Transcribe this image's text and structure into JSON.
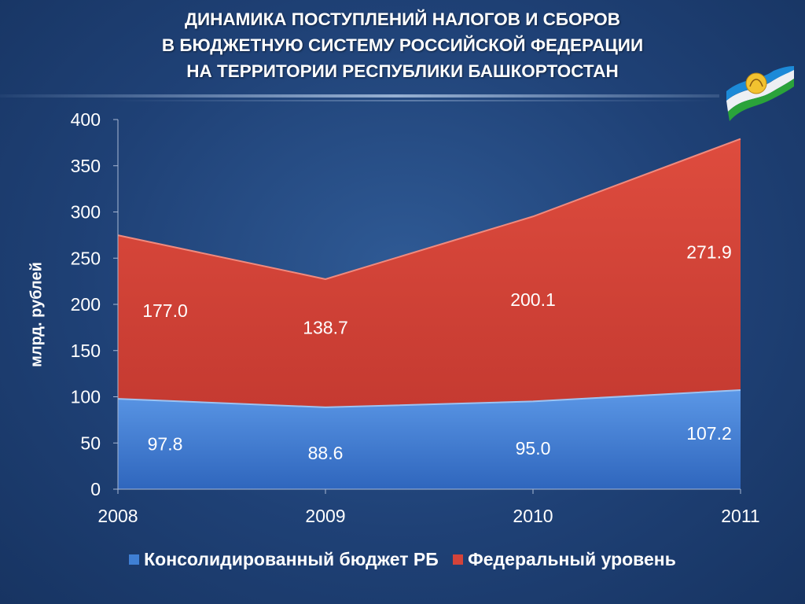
{
  "title_lines": [
    "ДИНАМИКА ПОСТУПЛЕНИЙ НАЛОГОВ И СБОРОВ",
    "В БЮДЖЕТНУЮ СИСТЕМУ РОССИЙСКОЙ ФЕДЕРАЦИИ",
    "НА ТЕРРИТОРИИ РЕСПУБЛИКИ БАШКОРТОСТАН"
  ],
  "chart_data": {
    "type": "area",
    "stacked": true,
    "x": [
      "2008",
      "2009",
      "2010",
      "2011"
    ],
    "ylabel": "млрд. рублей",
    "ylim": [
      0,
      400
    ],
    "yticks": [
      "0",
      "50",
      "100",
      "150",
      "200",
      "250",
      "300",
      "350",
      "400"
    ],
    "series": [
      {
        "name": "Консолидированный бюджет РБ",
        "values": [
          97.8,
          88.6,
          95.0,
          107.2
        ],
        "labels": [
          "97.8",
          "88.6",
          "95.0",
          "107.2"
        ],
        "color": "#3f7fd4"
      },
      {
        "name": "Федеральный уровень",
        "values": [
          177.0,
          138.7,
          200.1,
          271.9
        ],
        "labels": [
          "177.0",
          "138.7",
          "200.1",
          "271.9"
        ],
        "color": "#d4433a"
      }
    ],
    "legend_position": "bottom",
    "grid": false
  },
  "colors": {
    "background": "#1f4176",
    "consolidated": "#3f7fd4",
    "federal": "#d4433a",
    "axis": "#a9b9d4"
  }
}
